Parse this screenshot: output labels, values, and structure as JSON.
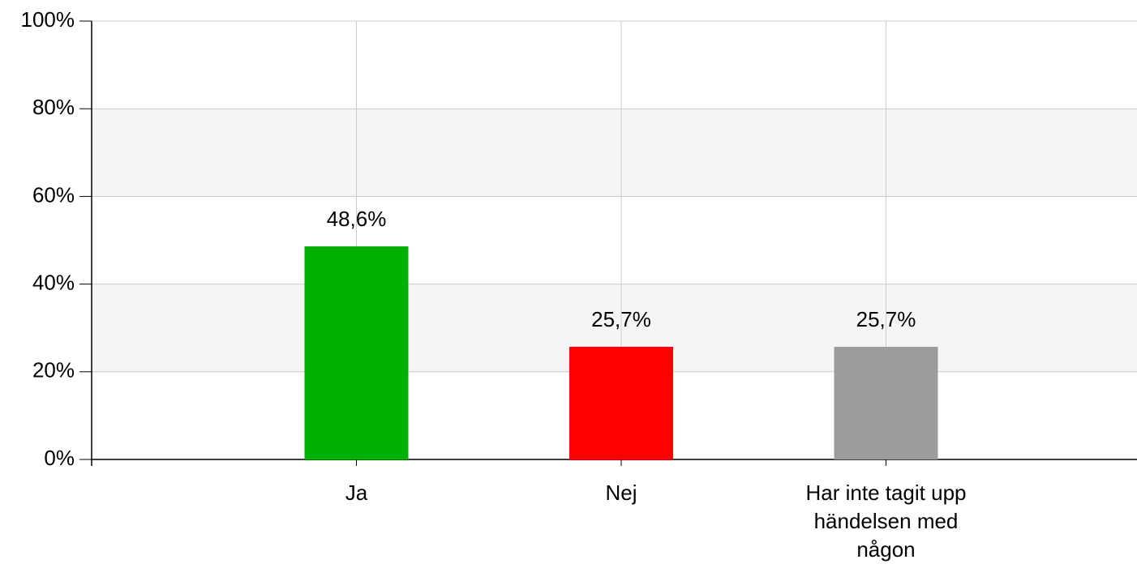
{
  "chart_data": {
    "type": "bar",
    "categories": [
      "Ja",
      "Nej",
      "Har inte tagit upp händelsen med någon"
    ],
    "values": [
      48.6,
      25.7,
      25.7
    ],
    "value_labels": [
      "48,6%",
      "25,7%",
      "25,7%"
    ],
    "colors": [
      "#00b000",
      "#ff0000",
      "#9c9c9c"
    ],
    "ylim": [
      0,
      100
    ],
    "yticks": [
      {
        "value": 0,
        "label": "0%"
      },
      {
        "value": 20,
        "label": "20%"
      },
      {
        "value": 40,
        "label": "40%"
      },
      {
        "value": 60,
        "label": "60%"
      },
      {
        "value": 80,
        "label": "80%"
      },
      {
        "value": 100,
        "label": "100%"
      }
    ],
    "grid": true
  }
}
